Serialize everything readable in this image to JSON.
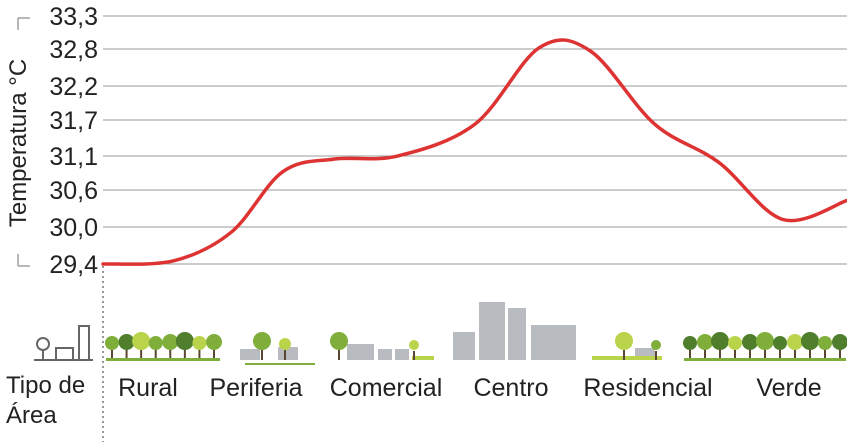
{
  "chart_data": {
    "type": "line",
    "title": "",
    "ylabel": "Temperatura °C",
    "xlabel": "Tipo de Área",
    "xlabel_lines": [
      "Tipo de",
      "Área"
    ],
    "categories": [
      "Rural",
      "Periferia",
      "Comercial",
      "Centro",
      "Residencial",
      "Verde"
    ],
    "y_ticks": [
      "33,3",
      "32,8",
      "32,2",
      "31,7",
      "31,1",
      "30,6",
      "30,0",
      "29,4"
    ],
    "ylim": [
      29.4,
      33.3
    ],
    "grid": true,
    "series": [
      {
        "color": "#dd3333",
        "x": [
          0,
          0.55,
          1,
          1.4,
          1.8,
          2.3,
          2.9,
          3.4,
          3.8,
          4.3,
          4.8,
          5.3,
          5.8
        ],
        "y": [
          29.4,
          29.45,
          29.9,
          30.85,
          31.05,
          31.1,
          31.6,
          32.8,
          32.75,
          31.6,
          31.0,
          30.1,
          30.4
        ]
      }
    ],
    "colors": {
      "line": "#dd3333",
      "grid": "#9a9a9a",
      "building": "#b8bcc0",
      "tree_dark": "#4f7f2c",
      "tree_mid": "#7fae3b",
      "tree_light": "#b9d44a"
    }
  }
}
